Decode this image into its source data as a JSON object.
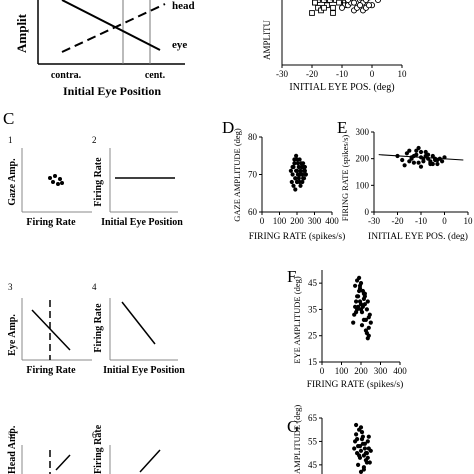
{
  "panel_letters": {
    "C": "C",
    "D": "D",
    "E": "E",
    "F": "F",
    "G": "G"
  },
  "top_left": {
    "ylabel": "Amplit",
    "xlabel": "Initial Eye Position",
    "tick_left": "contra.",
    "tick_right": "cent.",
    "line_head": "head",
    "line_eye": "eye"
  },
  "top_right": {
    "ylabel": "AMPLITU",
    "xlabel": "INITIAL EYE POS. (deg)",
    "x_ticks": [
      "-30",
      "-20",
      "-10",
      "0",
      "10"
    ],
    "y_ticks": [
      "0",
      "10",
      "20"
    ]
  },
  "schematics": [
    {
      "num": "1",
      "ylabel": "Gaze Amp.",
      "xlabel": "Firing Rate"
    },
    {
      "num": "2",
      "ylabel": "Firing Rate",
      "xlabel": "Initial Eye Position"
    },
    {
      "num": "3",
      "ylabel": "Eye Amp.",
      "xlabel": "Firing Rate"
    },
    {
      "num": "4",
      "ylabel": "Firing Rate",
      "xlabel": "Initial Eye Position"
    },
    {
      "num": "5",
      "ylabel": "Head Amp.",
      "xlabel": ""
    },
    {
      "num": "6",
      "ylabel": "Firing Rate",
      "xlabel": ""
    }
  ],
  "chart_data": [
    {
      "id": "top-right",
      "type": "scatter",
      "xlabel": "INITIAL EYE POS. (deg)",
      "ylabel": "AMPLITU",
      "xlim": [
        -30,
        10
      ],
      "ylim": [
        0,
        30
      ],
      "series": [
        {
          "marker": "square",
          "x": [
            -19,
            -18,
            -17,
            -16,
            -15,
            -14,
            -13,
            -12,
            -11,
            -10,
            -9,
            -16,
            -14,
            -12,
            -10,
            -18,
            -17,
            -15,
            -13,
            -11,
            -9,
            -8,
            -20,
            -19,
            -16,
            -13
          ],
          "y": [
            24,
            25,
            26,
            25,
            26,
            25,
            26,
            25,
            26,
            25,
            24,
            28,
            27,
            28,
            27,
            22,
            21,
            23,
            22,
            24,
            23,
            24,
            20,
            24,
            22,
            20
          ]
        },
        {
          "marker": "circle",
          "x": [
            -15,
            -13,
            -12,
            -11,
            -10,
            -9,
            -8,
            -7,
            -6,
            -5,
            -4,
            -3,
            -2,
            -1,
            0,
            2,
            -10,
            -8,
            -7,
            -6,
            -5,
            -4,
            -3,
            -2,
            -1,
            -8,
            -6,
            -4
          ],
          "y": [
            27,
            28,
            27,
            26,
            27,
            26,
            27,
            28,
            26,
            27,
            25,
            24,
            25,
            26,
            23,
            25,
            22,
            23,
            24,
            21,
            22,
            23,
            21,
            22,
            23,
            25,
            24,
            26
          ]
        }
      ]
    },
    {
      "id": "D",
      "type": "scatter",
      "xlabel": "FIRING RATE (spikes/s)",
      "ylabel": "GAZE AMPLITUDE (deg)",
      "xlim": [
        0,
        400
      ],
      "ylim": [
        60,
        80
      ],
      "x_ticks": [
        "0",
        "100",
        "200",
        "300",
        "400"
      ],
      "y_ticks": [
        "60",
        "70",
        "80"
      ],
      "x": [
        165,
        175,
        180,
        185,
        190,
        195,
        200,
        205,
        210,
        215,
        220,
        225,
        230,
        235,
        240,
        245,
        250,
        170,
        180,
        190,
        200,
        210,
        220,
        230,
        240,
        250,
        185,
        195,
        205,
        215,
        225,
        235,
        245,
        175,
        200,
        220,
        240,
        190,
        210,
        230
      ],
      "y": [
        71,
        70,
        72,
        73,
        69,
        71,
        74,
        70,
        72,
        68,
        71,
        73,
        70,
        69,
        72,
        71,
        70,
        68,
        67,
        66,
        68,
        69,
        67,
        68,
        69,
        70,
        74,
        75,
        73,
        74,
        72,
        73,
        72,
        72,
        71,
        70,
        71,
        69,
        70,
        72
      ]
    },
    {
      "id": "E",
      "type": "scatter",
      "xlabel": "INITIAL EYE POS. (deg)",
      "ylabel": "FIRING RATE (spikes/s)",
      "xlim": [
        -30,
        10
      ],
      "ylim": [
        0,
        300
      ],
      "x_ticks": [
        "-30",
        "-20",
        "-10",
        "0",
        "10"
      ],
      "y_ticks": [
        "0",
        "100",
        "200",
        "300"
      ],
      "x": [
        -20,
        -18,
        -16,
        -15,
        -14,
        -13,
        -12,
        -11,
        -10,
        -9,
        -8,
        -7,
        -6,
        -5,
        -4,
        -3,
        -2,
        -1,
        0,
        -17,
        -15,
        -13,
        -11,
        -9,
        -7,
        -5,
        -3,
        -12,
        -10,
        -8,
        -6,
        -4,
        -14,
        -10,
        -6
      ],
      "y": [
        210,
        195,
        220,
        230,
        200,
        185,
        215,
        240,
        205,
        190,
        225,
        200,
        185,
        210,
        195,
        180,
        200,
        190,
        205,
        175,
        190,
        210,
        185,
        200,
        215,
        180,
        195,
        230,
        170,
        210,
        190,
        200,
        205,
        225,
        180
      ],
      "trend": {
        "x": [
          -28,
          8
        ],
        "y": [
          215,
          195
        ]
      }
    },
    {
      "id": "F",
      "type": "scatter",
      "xlabel": "FIRING RATE (spikes/s)",
      "ylabel": "EYE AMPLITUDE (deg)",
      "xlim": [
        0,
        400
      ],
      "ylim": [
        15,
        50
      ],
      "x_ticks": [
        "0",
        "100",
        "200",
        "300",
        "400"
      ],
      "y_ticks": [
        "15",
        "25",
        "35",
        "45"
      ],
      "x": [
        160,
        165,
        170,
        175,
        180,
        185,
        190,
        195,
        200,
        205,
        210,
        215,
        220,
        225,
        230,
        235,
        240,
        245,
        250,
        170,
        180,
        190,
        200,
        210,
        220,
        230,
        240,
        175,
        185,
        195,
        205,
        215,
        225,
        235,
        180,
        200,
        220,
        240,
        195,
        215
      ],
      "y": [
        30,
        33,
        36,
        38,
        35,
        40,
        42,
        44,
        37,
        34,
        36,
        39,
        41,
        31,
        35,
        38,
        28,
        33,
        30,
        44,
        46,
        47,
        45,
        42,
        40,
        26,
        32,
        34,
        36,
        38,
        29,
        31,
        27,
        24,
        40,
        35,
        37,
        25,
        43,
        41
      ]
    },
    {
      "id": "G",
      "type": "scatter",
      "xlabel": "",
      "ylabel": "AMPLITUDE (deg)",
      "xlim": [
        0,
        400
      ],
      "ylim": [
        30,
        65
      ],
      "y_ticks": [
        "45",
        "55",
        "65"
      ],
      "x": [
        165,
        170,
        175,
        180,
        185,
        190,
        195,
        200,
        205,
        210,
        215,
        220,
        225,
        230,
        235,
        240,
        245,
        250,
        175,
        185,
        195,
        205,
        215,
        225,
        235,
        180,
        200,
        220,
        240,
        190,
        210,
        230,
        200,
        215
      ],
      "y": [
        52,
        55,
        58,
        50,
        53,
        60,
        48,
        51,
        56,
        54,
        49,
        52,
        47,
        50,
        55,
        57,
        46,
        51,
        62,
        45,
        53,
        59,
        44,
        50,
        48,
        56,
        42,
        54,
        52,
        49,
        57,
        46,
        61,
        43
      ]
    }
  ]
}
